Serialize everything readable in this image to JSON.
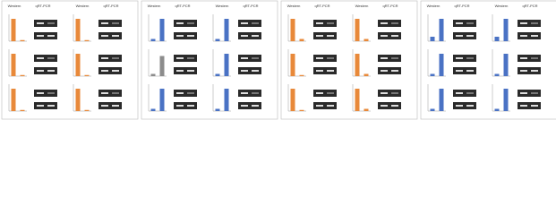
{
  "panels": [
    {
      "headers": [
        "Western",
        "qRT-PCR",
        "Western",
        "qRT-PCR"
      ]
    },
    {
      "headers": [
        "Western",
        "qRT-PCR",
        "Western",
        "qRT-PCR"
      ]
    },
    {
      "headers": [
        "Western",
        "qRT-PCR",
        "Western",
        "qRT-PCR"
      ]
    },
    {
      "headers": [
        "Western",
        "qRT-PCR",
        "Western",
        "qRT-PCR"
      ]
    }
  ],
  "chart_data": [
    {
      "type": "bar",
      "categories": [
        null,
        null
      ],
      "values": [
        1,
        0.05
      ],
      "color": "#e8893a",
      "ylim": [
        0,
        1.2
      ]
    },
    {
      "type": "bar",
      "categories": [
        null,
        null
      ],
      "values": [
        1,
        0.05
      ],
      "color": "#e8893a",
      "ylim": [
        0,
        1.2
      ]
    },
    {
      "type": "bar",
      "categories": [
        null,
        null
      ],
      "values": [
        1,
        0.05
      ],
      "color": "#e8893a",
      "ylim": [
        0,
        1.2
      ]
    },
    {
      "type": "bar",
      "categories": [
        null,
        null
      ],
      "values": [
        1,
        0.05
      ],
      "color": "#e8893a",
      "ylim": [
        0,
        1.2
      ]
    },
    {
      "type": "bar",
      "categories": [
        null,
        null
      ],
      "values": [
        1,
        0.05
      ],
      "color": "#e8893a",
      "ylim": [
        0,
        1.2
      ]
    },
    {
      "type": "bar",
      "categories": [
        null,
        null
      ],
      "values": [
        1,
        0.05
      ],
      "color": "#e8893a",
      "ylim": [
        0,
        1.2
      ]
    },
    {
      "type": "bar",
      "categories": [
        null,
        null
      ],
      "values": [
        0.1,
        1
      ],
      "color": "#4a72c4",
      "ylim": [
        0,
        1.2
      ]
    },
    {
      "type": "bar",
      "categories": [
        null,
        null
      ],
      "values": [
        0.1,
        1
      ],
      "color": "#4a72c4",
      "ylim": [
        0,
        1.2
      ]
    },
    {
      "type": "bar",
      "categories": [
        null,
        null
      ],
      "values": [
        0.1,
        0.9
      ],
      "color": "#8c8c8c",
      "ylim": [
        0,
        1.2
      ]
    },
    {
      "type": "bar",
      "categories": [
        null,
        null
      ],
      "values": [
        0.1,
        1
      ],
      "color": "#4a72c4",
      "ylim": [
        0,
        1.2
      ]
    },
    {
      "type": "bar",
      "categories": [
        null,
        null
      ],
      "values": [
        0.1,
        1
      ],
      "color": "#4a72c4",
      "ylim": [
        0,
        1.2
      ]
    },
    {
      "type": "bar",
      "categories": [
        null,
        null
      ],
      "values": [
        0.1,
        1
      ],
      "color": "#4a72c4",
      "ylim": [
        0,
        1.2
      ]
    },
    {
      "type": "bar",
      "categories": [
        null,
        null
      ],
      "values": [
        1,
        0.1
      ],
      "color": "#e8893a",
      "ylim": [
        0,
        1.2
      ]
    },
    {
      "type": "bar",
      "categories": [
        null,
        null
      ],
      "values": [
        1,
        0.1
      ],
      "color": "#e8893a",
      "ylim": [
        0,
        1.2
      ]
    },
    {
      "type": "bar",
      "categories": [
        null,
        null
      ],
      "values": [
        1,
        0.05
      ],
      "color": "#e8893a",
      "ylim": [
        0,
        1.2
      ]
    },
    {
      "type": "bar",
      "categories": [
        null,
        null
      ],
      "values": [
        1,
        0.1
      ],
      "color": "#e8893a",
      "ylim": [
        0,
        1.2
      ]
    },
    {
      "type": "bar",
      "categories": [
        null,
        null
      ],
      "values": [
        1,
        0.05
      ],
      "color": "#e8893a",
      "ylim": [
        0,
        1.2
      ]
    },
    {
      "type": "bar",
      "categories": [
        null,
        null
      ],
      "values": [
        1,
        0.1
      ],
      "color": "#e8893a",
      "ylim": [
        0,
        1.2
      ]
    },
    {
      "type": "bar",
      "categories": [
        null,
        null
      ],
      "values": [
        0.2,
        1
      ],
      "color": "#4a72c4",
      "ylim": [
        0,
        1.2
      ]
    },
    {
      "type": "bar",
      "categories": [
        null,
        null
      ],
      "values": [
        0.2,
        1
      ],
      "color": "#4a72c4",
      "ylim": [
        0,
        1.2
      ]
    },
    {
      "type": "bar",
      "categories": [
        null,
        null
      ],
      "values": [
        0.1,
        1
      ],
      "color": "#4a72c4",
      "ylim": [
        0,
        1.2
      ]
    },
    {
      "type": "bar",
      "categories": [
        null,
        null
      ],
      "values": [
        0.1,
        1
      ],
      "color": "#4a72c4",
      "ylim": [
        0,
        1.2
      ]
    },
    {
      "type": "bar",
      "categories": [
        null,
        null
      ],
      "values": [
        0.1,
        1
      ],
      "color": "#4a72c4",
      "ylim": [
        0,
        1.2
      ]
    },
    {
      "type": "bar",
      "categories": [
        null,
        null
      ],
      "values": [
        0.1,
        1
      ],
      "color": "#4a72c4",
      "ylim": [
        0,
        1.2
      ]
    }
  ]
}
